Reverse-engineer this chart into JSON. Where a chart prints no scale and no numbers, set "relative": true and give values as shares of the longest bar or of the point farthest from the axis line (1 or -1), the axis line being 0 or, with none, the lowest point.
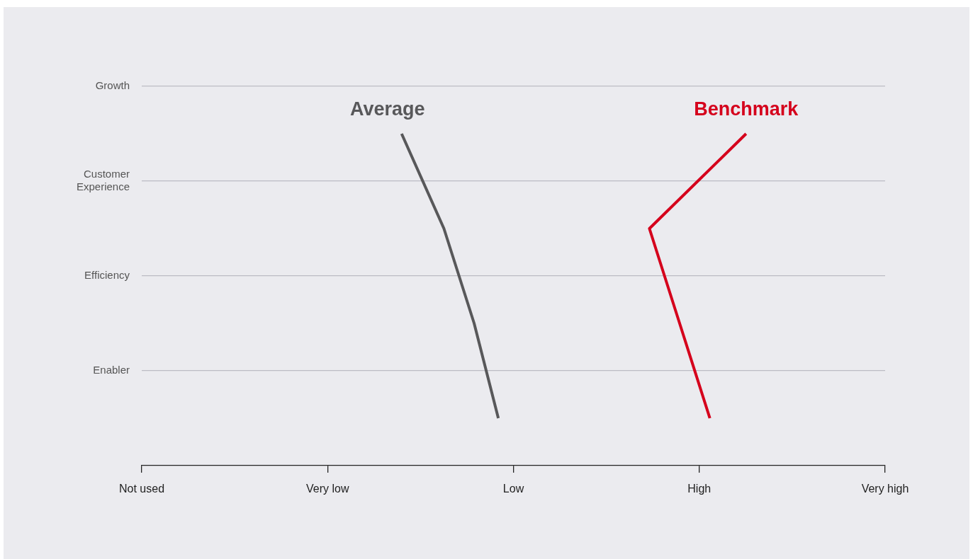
{
  "chart_data": {
    "type": "line",
    "orientation": "horizontal",
    "relative": true,
    "categories": [
      "Growth",
      "Customer Experience",
      "Efficiency",
      "Enabler"
    ],
    "annotations": [
      "Not used",
      "Very low",
      "Low",
      "High",
      "Very high"
    ],
    "grid": "y",
    "marker": "none",
    "line_style": "solid",
    "legend": false,
    "series": [
      {
        "name": "Average",
        "color": "#58585a",
        "values": [
          0.43,
          0.5,
          0.55,
          0.59
        ]
      },
      {
        "name": "Benchmark",
        "color": "#d5001c",
        "values": [
          1,
          0.84,
          0.89,
          0.94
        ]
      }
    ]
  }
}
